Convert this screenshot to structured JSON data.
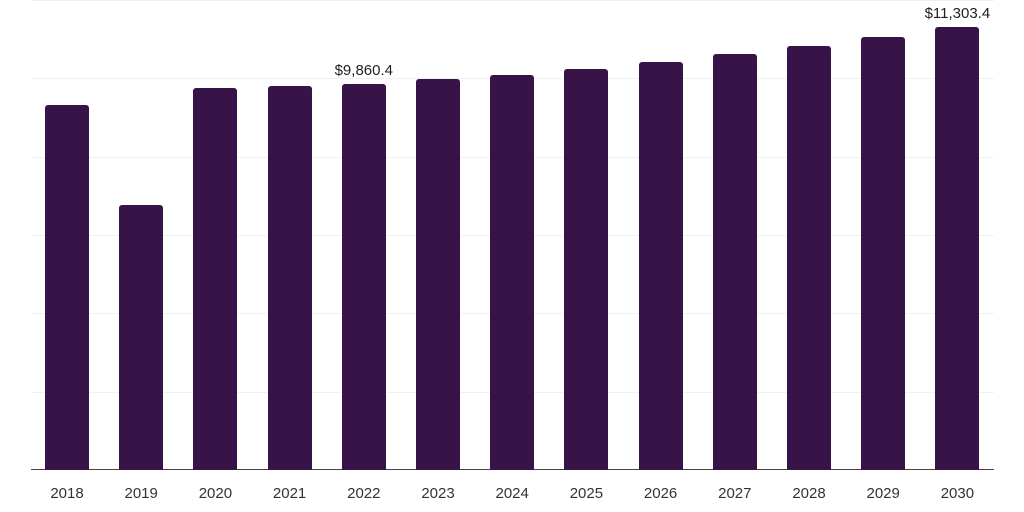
{
  "chart_data": {
    "type": "bar",
    "title": "",
    "xlabel": "",
    "ylabel": "",
    "categories": [
      "2018",
      "2019",
      "2020",
      "2021",
      "2022",
      "2023",
      "2024",
      "2025",
      "2026",
      "2027",
      "2028",
      "2029",
      "2030"
    ],
    "values": [
      9307,
      6776,
      9742,
      9793,
      9860.4,
      9972,
      10074,
      10228,
      10407,
      10611,
      10816,
      11046,
      11303.4
    ],
    "data_labels": [
      {
        "category": "2022",
        "text": "$9,860.4"
      },
      {
        "category": "2030",
        "text": "$11,303.4"
      }
    ],
    "ylim": [
      0,
      12000
    ],
    "gridlines": [
      0,
      2000,
      4000,
      6000,
      8000,
      10000,
      12000
    ],
    "grid": true,
    "legend": null,
    "bar_color": "#371348",
    "currency": "$"
  }
}
